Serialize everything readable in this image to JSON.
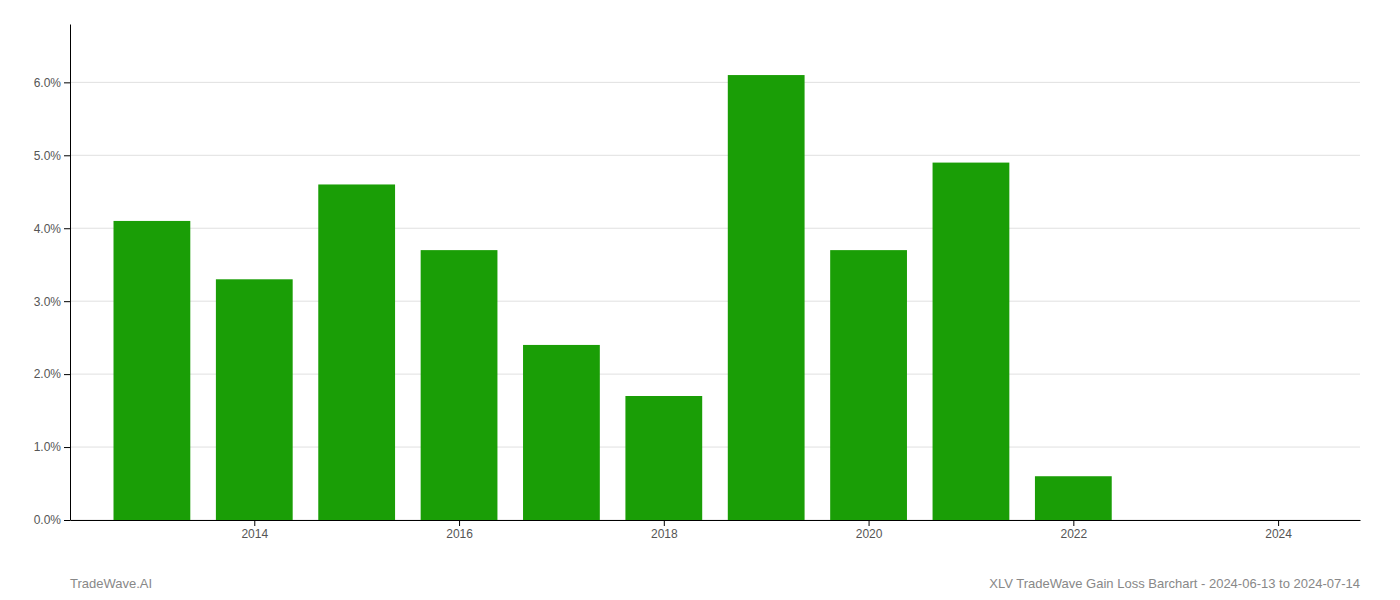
{
  "chart_data": {
    "type": "bar",
    "x": [
      2013,
      2014,
      2015,
      2016,
      2017,
      2018,
      2019,
      2020,
      2021,
      2022,
      2023
    ],
    "values": [
      0.041,
      0.033,
      0.046,
      0.037,
      0.024,
      0.017,
      0.061,
      0.037,
      0.049,
      0.006,
      0.0
    ],
    "color": "#1a9e06",
    "xlim": [
      2012.2,
      2024.8
    ],
    "xticks": [
      2014,
      2016,
      2018,
      2020,
      2022,
      2024
    ],
    "ylim": [
      0.0,
      0.068
    ],
    "yticks": [
      {
        "value": 0.0,
        "label": "0.0%"
      },
      {
        "value": 0.01,
        "label": "1.0%"
      },
      {
        "value": 0.02,
        "label": "2.0%"
      },
      {
        "value": 0.03,
        "label": "3.0%"
      },
      {
        "value": 0.04,
        "label": "4.0%"
      },
      {
        "value": 0.05,
        "label": "5.0%"
      },
      {
        "value": 0.06,
        "label": "6.0%"
      }
    ],
    "grid": true,
    "annotations": [
      "TradeWave.AI",
      "XLV TradeWave Gain Loss Barchart - 2024-06-13 to 2024-07-14"
    ]
  }
}
